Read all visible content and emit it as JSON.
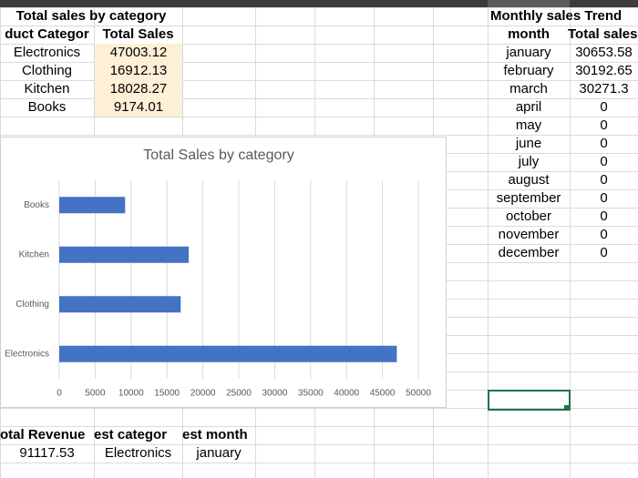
{
  "sheet": {
    "sales_by_category": {
      "title": "Total sales by category",
      "headers": [
        "duct Categor",
        "Total Sales"
      ],
      "rows": [
        [
          "Electronics",
          47003.12
        ],
        [
          "Clothing",
          16912.13
        ],
        [
          "Kitchen",
          18028.27
        ],
        [
          "Books",
          9174.01
        ]
      ]
    },
    "monthly_trend": {
      "title": "Monthly sales Trend",
      "headers": [
        "month",
        "Total sales"
      ],
      "rows": [
        [
          "january",
          30653.58
        ],
        [
          "february",
          30192.65
        ],
        [
          "march",
          30271.3
        ],
        [
          "april",
          0
        ],
        [
          "may",
          0
        ],
        [
          "june",
          0
        ],
        [
          "july",
          0
        ],
        [
          "august",
          0
        ],
        [
          "september",
          0
        ],
        [
          "october",
          0
        ],
        [
          "november",
          0
        ],
        [
          "december",
          0
        ]
      ]
    },
    "summary": {
      "headers": [
        "otal Revenue",
        "est categor",
        "est month"
      ],
      "values": [
        91117.53,
        "Electronics",
        "january"
      ]
    }
  },
  "chart_data": {
    "type": "bar",
    "orientation": "horizontal",
    "title": "Total Sales by category",
    "categories": [
      "Electronics",
      "Clothing",
      "Kitchen",
      "Books"
    ],
    "values": [
      47003.12,
      16912.13,
      18028.27,
      9174.01
    ],
    "color": "#4472c4",
    "xlim": [
      0,
      50000
    ],
    "xticks": [
      0,
      5000,
      10000,
      15000,
      20000,
      25000,
      30000,
      35000,
      40000,
      45000,
      50000
    ],
    "grid": true
  }
}
